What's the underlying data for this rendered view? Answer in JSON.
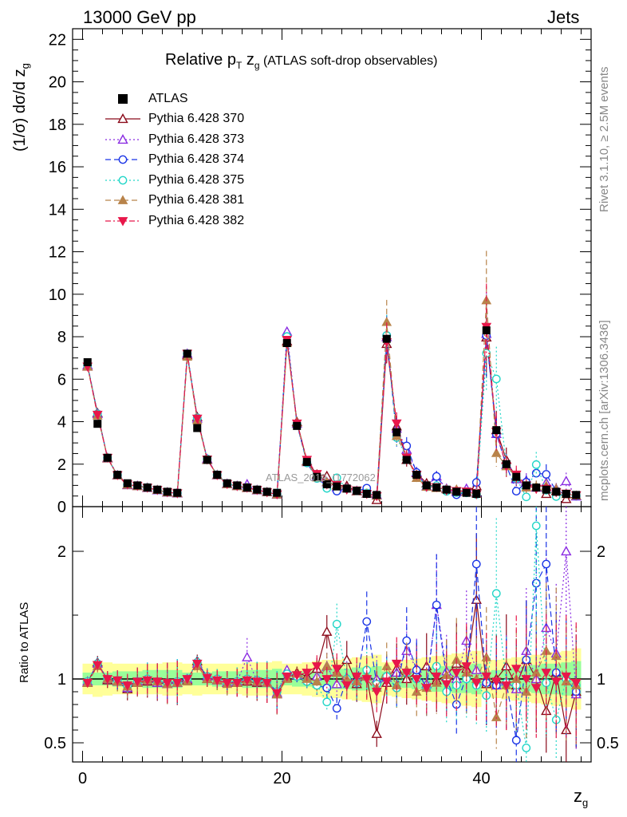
{
  "header": {
    "left": "13000 GeV pp",
    "right": "Jets"
  },
  "side_labels": {
    "rivet": "Rivet 3.1.10, ≥ 2.5M events",
    "mcplots": "mcplots.cern.ch [arXiv:1306.3436]"
  },
  "watermark": "ATLAS_2019_I1772062",
  "title": {
    "main": "Relative p",
    "sub": "T",
    "mid": " z",
    "sub2": "g",
    "suffix": " (ATLAS soft-drop observables)"
  },
  "axes": {
    "main_ylabel": "(1/σ) dσ/d z",
    "main_ylabel_sub": "g",
    "ratio_ylabel": "Ratio to ATLAS",
    "xlabel": "z",
    "xlabel_sub": "g"
  },
  "chart_data": {
    "type": "scatter",
    "x": [
      0.5,
      1.5,
      2.5,
      3.5,
      4.5,
      5.5,
      6.5,
      7.5,
      8.5,
      9.5,
      10.5,
      11.5,
      12.5,
      13.5,
      14.5,
      15.5,
      16.5,
      17.5,
      18.5,
      19.5,
      20.5,
      21.5,
      22.5,
      23.5,
      24.5,
      25.5,
      26.5,
      27.5,
      28.5,
      29.5,
      30.5,
      31.5,
      32.5,
      33.5,
      34.5,
      35.5,
      36.5,
      37.5,
      38.5,
      39.5,
      40.5,
      41.5,
      42.5,
      43.5,
      44.5,
      45.5,
      46.5,
      47.5,
      48.5,
      49.5
    ],
    "xlim": [
      -1,
      51
    ],
    "main_ylim": [
      0,
      22.5
    ],
    "main_yticks": [
      0,
      2,
      4,
      6,
      8,
      10,
      12,
      14,
      16,
      18,
      20,
      22
    ],
    "ratio_ylim": [
      0.35,
      2.35
    ],
    "ratio_yticks": [
      0.5,
      1,
      2
    ],
    "xticks": [
      0,
      20,
      40
    ],
    "data": {
      "name": "ATLAS",
      "values": [
        6.8,
        3.9,
        2.3,
        1.5,
        1.1,
        1.0,
        0.9,
        0.8,
        0.7,
        0.65,
        7.2,
        3.7,
        2.2,
        1.5,
        1.1,
        1.0,
        0.9,
        0.8,
        0.7,
        0.65,
        7.7,
        3.8,
        2.1,
        1.4,
        1.05,
        0.95,
        0.85,
        0.75,
        0.6,
        0.55,
        7.9,
        3.5,
        2.2,
        1.5,
        1.0,
        0.9,
        0.8,
        0.7,
        0.65,
        0.6,
        8.3,
        3.6,
        2.0,
        1.4,
        1.0,
        0.9,
        0.8,
        0.7,
        0.6,
        0.55
      ]
    },
    "ratio_bands": {
      "inner": [
        0.05,
        0.05,
        0.05,
        0.06,
        0.06,
        0.06,
        0.07,
        0.07,
        0.07,
        0.07,
        0.05,
        0.05,
        0.05,
        0.06,
        0.06,
        0.06,
        0.07,
        0.07,
        0.07,
        0.08,
        0.05,
        0.06,
        0.06,
        0.07,
        0.08,
        0.08,
        0.08,
        0.09,
        0.09,
        0.1,
        0.06,
        0.06,
        0.07,
        0.08,
        0.09,
        0.1,
        0.1,
        0.11,
        0.11,
        0.12,
        0.06,
        0.07,
        0.08,
        0.09,
        0.1,
        0.11,
        0.12,
        0.12,
        0.13,
        0.14
      ],
      "outer": [
        0.12,
        0.14,
        0.13,
        0.12,
        0.12,
        0.12,
        0.12,
        0.12,
        0.13,
        0.13,
        0.12,
        0.13,
        0.12,
        0.12,
        0.12,
        0.12,
        0.13,
        0.13,
        0.13,
        0.14,
        0.12,
        0.12,
        0.13,
        0.14,
        0.15,
        0.15,
        0.16,
        0.17,
        0.18,
        0.19,
        0.13,
        0.14,
        0.15,
        0.16,
        0.17,
        0.18,
        0.19,
        0.2,
        0.21,
        0.22,
        0.14,
        0.15,
        0.16,
        0.17,
        0.18,
        0.19,
        0.2,
        0.21,
        0.22,
        0.24
      ]
    },
    "series": [
      {
        "name": "Pythia 6.428 370",
        "color": "#8b0a1a",
        "marker": "triangle-open",
        "dash": "solid",
        "ratio": [
          0.97,
          1.13,
          0.99,
          0.98,
          0.92,
          0.97,
          0.98,
          0.97,
          0.96,
          0.97,
          0.99,
          1.14,
          1.0,
          0.99,
          0.97,
          0.97,
          0.98,
          0.97,
          0.97,
          0.88,
          1.01,
          1.05,
          1.02,
          1.08,
          1.37,
          1.05,
          1.15,
          0.96,
          1.02,
          0.57,
          0.97,
          1.08,
          1.0,
          1.05,
          1.1,
          0.99,
          1.03,
          1.12,
          1.08,
          1.62,
          0.96,
          1.0,
          1.1,
          0.95,
          1.15,
          1.0,
          0.75,
          1.05,
          0.6,
          0.9
        ]
      },
      {
        "name": "Pythia 6.428 373",
        "color": "#8a2be2",
        "marker": "triangle-open",
        "dash": "dotted",
        "ratio": [
          0.98,
          1.12,
          1.0,
          0.98,
          0.93,
          0.98,
          0.99,
          0.97,
          0.96,
          0.97,
          1.0,
          1.12,
          1.02,
          0.99,
          0.97,
          0.98,
          1.17,
          0.98,
          0.97,
          0.89,
          1.07,
          1.03,
          1.0,
          1.02,
          1.1,
          0.96,
          1.01,
          0.99,
          1.02,
          1.0,
          1.01,
          1.05,
          1.22,
          1.08,
          0.96,
          1.58,
          1.06,
          1.0,
          1.3,
          1.07,
          0.98,
          0.95,
          0.98,
          0.92,
          1.22,
          1.0,
          1.4,
          1.2,
          2.0,
          0.88
        ]
      },
      {
        "name": "Pythia 6.428 374",
        "color": "#1b35e6",
        "marker": "circle-open",
        "dash": "dashed",
        "ratio": [
          0.98,
          1.12,
          1.0,
          0.99,
          0.94,
          0.98,
          1.0,
          0.98,
          0.97,
          0.98,
          1.0,
          1.13,
          1.02,
          1.0,
          0.97,
          0.98,
          1.0,
          0.99,
          0.98,
          0.9,
          1.04,
          1.02,
          0.98,
          0.95,
          0.93,
          0.77,
          1.0,
          0.97,
          1.45,
          0.96,
          1.02,
          0.93,
          1.3,
          1.07,
          0.93,
          1.58,
          1.0,
          0.8,
          1.02,
          1.9,
          0.97,
          0.95,
          0.97,
          0.52,
          1.15,
          1.75,
          1.9,
          1.05,
          1.0,
          0.9
        ]
      },
      {
        "name": "Pythia 6.428 375",
        "color": "#22d6c8",
        "marker": "circle-open",
        "dash": "dotted",
        "ratio": [
          0.98,
          1.12,
          1.0,
          0.99,
          0.94,
          0.98,
          1.0,
          0.98,
          0.97,
          0.98,
          1.0,
          1.13,
          1.02,
          1.0,
          0.97,
          0.98,
          1.0,
          0.99,
          0.98,
          0.9,
          1.04,
          1.02,
          0.98,
          0.95,
          0.82,
          1.43,
          1.0,
          0.97,
          1.07,
          0.96,
          1.02,
          0.93,
          1.05,
          1.0,
          0.93,
          1.1,
          0.9,
          0.95,
          1.0,
          0.95,
          0.87,
          1.67,
          0.97,
          0.95,
          0.46,
          2.2,
          0.97,
          0.68,
          1.0,
          0.95
        ]
      },
      {
        "name": "Pythia 6.428 381",
        "color": "#b8834a",
        "marker": "triangle-filled",
        "dash": "dashed",
        "ratio": [
          0.97,
          1.1,
          1.0,
          0.98,
          0.94,
          0.97,
          0.99,
          0.98,
          0.96,
          0.97,
          0.98,
          1.1,
          1.0,
          0.99,
          0.96,
          0.97,
          0.99,
          0.98,
          0.97,
          0.88,
          1.0,
          1.04,
          1.0,
          0.98,
          1.1,
          1.05,
          1.0,
          0.98,
          1.02,
          0.93,
          1.1,
          0.95,
          1.07,
          0.9,
          0.93,
          0.97,
          1.03,
          1.15,
          1.05,
          1.0,
          1.17,
          0.7,
          0.95,
          1.0,
          0.9,
          1.05,
          1.22,
          1.18,
          0.98,
          0.95
        ]
      },
      {
        "name": "Pythia 6.428 382",
        "color": "#e8174a",
        "marker": "triangle-down-filled",
        "dash": "dashdot",
        "ratio": [
          0.97,
          1.11,
          1.0,
          0.99,
          0.95,
          0.98,
          0.99,
          0.98,
          0.97,
          0.97,
          1.0,
          1.12,
          1.01,
          0.99,
          0.97,
          0.97,
          0.99,
          0.98,
          0.97,
          0.89,
          1.02,
          1.03,
          1.05,
          1.1,
          1.0,
          1.08,
          0.95,
          1.02,
          1.0,
          0.9,
          0.98,
          1.12,
          1.05,
          1.0,
          0.93,
          1.02,
          0.96,
          1.05,
          1.1,
          0.97,
          1.02,
          0.98,
          0.95,
          1.08,
          1.0,
          0.93,
          1.05,
          0.98,
          1.02,
          0.97
        ]
      }
    ]
  }
}
